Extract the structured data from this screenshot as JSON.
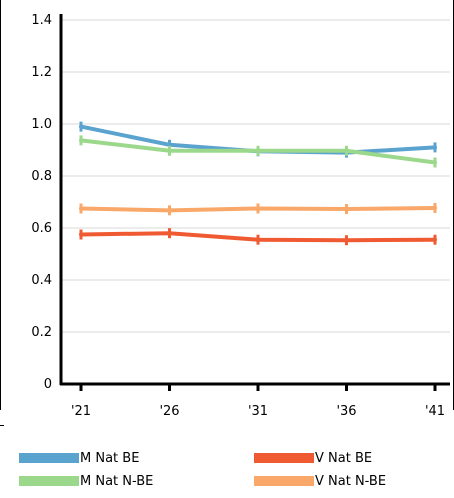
{
  "chart_data": {
    "type": "line",
    "categories": [
      "'21",
      "'26",
      "'31",
      "'36",
      "'41"
    ],
    "y_ticks": [
      "0",
      "0.2",
      "0.4",
      "0.6",
      "0.8",
      "1.0",
      "1.2",
      "1.4"
    ],
    "ylim": [
      0,
      1.4
    ],
    "grid": true,
    "legend_position": "bottom",
    "series": [
      {
        "name": "M Nat BE",
        "color": "#5ba3cf",
        "values": [
          0.99,
          0.92,
          0.895,
          0.89,
          0.91
        ]
      },
      {
        "name": "V Nat BE",
        "color": "#f05a32",
        "values": [
          0.575,
          0.58,
          0.555,
          0.553,
          0.555
        ]
      },
      {
        "name": "M Nat N-BE",
        "color": "#9bd88b",
        "values": [
          0.937,
          0.897,
          0.897,
          0.897,
          0.852
        ]
      },
      {
        "name": "V Nat N-BE",
        "color": "#f9a86a",
        "values": [
          0.675,
          0.668,
          0.675,
          0.673,
          0.677
        ]
      }
    ]
  }
}
